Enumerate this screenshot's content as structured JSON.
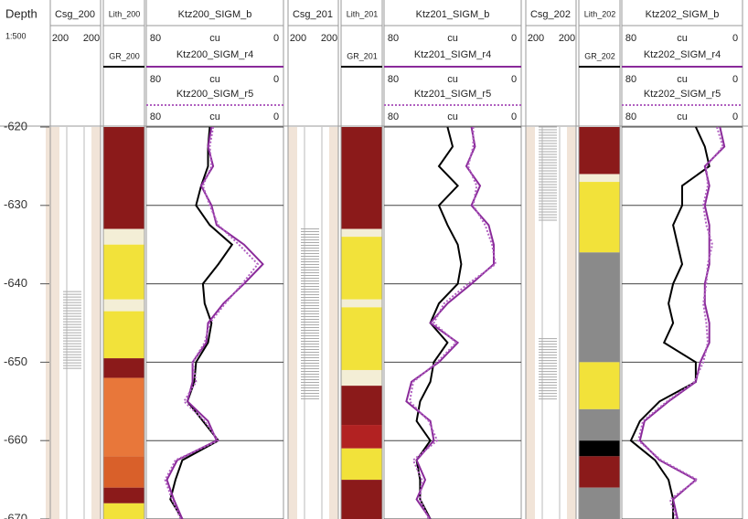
{
  "chart_data": {
    "type": "well_log",
    "depth_label": "Depth",
    "scale": "1:500",
    "ylim": [
      -620,
      -670
    ],
    "yticks": [
      -620,
      -630,
      -640,
      -650,
      -660,
      -670
    ],
    "depth_samples": [
      -620,
      -622.5,
      -625,
      -627.5,
      -630,
      -632.5,
      -635,
      -637.5,
      -640,
      -642.5,
      -645,
      -647.5,
      -650,
      -652.5,
      -655,
      -657.5,
      -660,
      -662.5,
      -665,
      -667.5,
      -670
    ],
    "wells": [
      {
        "casing": {
          "name": "Csg_200",
          "scale": [
            200,
            200
          ],
          "marks": [
            [
              -641,
              -651
            ]
          ]
        },
        "lith": "Lith_200",
        "gr": "GR_200",
        "lithology": [
          {
            "top": -620,
            "base": -633,
            "color": "#8b1a1a"
          },
          {
            "top": -633,
            "base": -635,
            "color": "#f3eed6"
          },
          {
            "top": -635,
            "base": -642,
            "color": "#f2e23a"
          },
          {
            "top": -642,
            "base": -643.5,
            "color": "#f3eed6"
          },
          {
            "top": -643.5,
            "base": -649.5,
            "color": "#f2e23a"
          },
          {
            "top": -649.5,
            "base": -652,
            "color": "#8b1a1a"
          },
          {
            "top": -652,
            "base": -662,
            "color": "#e8773a"
          },
          {
            "top": -662,
            "base": -666,
            "color": "#d9602a"
          },
          {
            "top": -666,
            "base": -668,
            "color": "#8b1a1a"
          },
          {
            "top": -668,
            "base": -670,
            "color": "#f2e23a"
          }
        ],
        "tracks": [
          {
            "name": "Ktz200_SIGM_b",
            "color": "#000000",
            "style": "solid",
            "scale": [
              80,
              "cu",
              0
            ],
            "values": [
              43,
              44,
              44,
              48,
              51,
              43,
              30,
              38,
              47,
              46,
              42,
              44,
              51,
              52,
              56,
              47,
              38,
              59,
              63,
              66,
              59
            ]
          },
          {
            "name": "Ktz200_SIGM_r4",
            "color": "#8a2a9a",
            "style": "solid",
            "scale": [
              80,
              "cu",
              0
            ],
            "values": [
              42,
              44,
              41,
              48,
              42,
              39,
              23,
              12,
              23,
              35,
              44,
              45,
              53,
              53,
              56,
              44,
              39,
              62,
              68,
              64,
              59
            ]
          },
          {
            "name": "Ktz200_SIGM_r5",
            "color": "#b060c0",
            "style": "dotted",
            "scale": [
              80,
              "cu",
              0
            ],
            "values": [
              41,
              43,
              42,
              47,
              43,
              38,
              26,
              15,
              24,
              34,
              43,
              46,
              53,
              51,
              58,
              46,
              38,
              63,
              69,
              65,
              60
            ]
          }
        ]
      },
      {
        "casing": {
          "name": "Csg_201",
          "scale": [
            200,
            200
          ],
          "marks": [
            [
              -633,
              -655
            ]
          ]
        },
        "lith": "Lith_201",
        "gr": "GR_201",
        "lithology": [
          {
            "top": -620,
            "base": -633,
            "color": "#8b1a1a"
          },
          {
            "top": -633,
            "base": -634,
            "color": "#f3eed6"
          },
          {
            "top": -634,
            "base": -642,
            "color": "#f2e23a"
          },
          {
            "top": -642,
            "base": -643,
            "color": "#f3eed6"
          },
          {
            "top": -643,
            "base": -651,
            "color": "#f2e23a"
          },
          {
            "top": -651,
            "base": -653,
            "color": "#f3eed6"
          },
          {
            "top": -653,
            "base": -658,
            "color": "#8b1a1a"
          },
          {
            "top": -658,
            "base": -661,
            "color": "#b22222"
          },
          {
            "top": -661,
            "base": -665,
            "color": "#f2e23a"
          },
          {
            "top": -665,
            "base": -670,
            "color": "#8b1a1a"
          }
        ],
        "tracks": [
          {
            "name": "Ktz201_SIGM_b",
            "color": "#000000",
            "style": "solid",
            "scale": [
              80,
              "cu",
              0
            ],
            "values": [
              43,
              40,
              48,
              37,
              48,
              43,
              37,
              35,
              37,
              48,
              53,
              43,
              51,
              53,
              59,
              61,
              53,
              61,
              59,
              59,
              53
            ]
          },
          {
            "name": "Ktz201_SIGM_r4",
            "color": "#8a2a9a",
            "style": "solid",
            "scale": [
              80,
              "cu",
              0
            ],
            "values": [
              29,
              27,
              32,
              24,
              29,
              19,
              16,
              16,
              29,
              43,
              53,
              37,
              48,
              64,
              67,
              53,
              51,
              61,
              56,
              61,
              53
            ]
          },
          {
            "name": "Ktz201_SIGM_r5",
            "color": "#b060c0",
            "style": "dotted",
            "scale": [
              80,
              "cu",
              0
            ],
            "values": [
              28,
              28,
              31,
              26,
              28,
              21,
              17,
              15,
              31,
              45,
              51,
              38,
              49,
              63,
              65,
              54,
              49,
              63,
              58,
              59,
              54
            ]
          }
        ]
      },
      {
        "casing": {
          "name": "Csg_202",
          "scale": [
            200,
            200
          ],
          "marks": [
            [
              -620,
              -632
            ],
            [
              -647,
              -655
            ]
          ]
        },
        "lith": "Lith_202",
        "gr": "GR_202",
        "lithology": [
          {
            "top": -620,
            "base": -626,
            "color": "#8b1a1a"
          },
          {
            "top": -626,
            "base": -627,
            "color": "#f3eed6"
          },
          {
            "top": -627,
            "base": -636,
            "color": "#f2e23a"
          },
          {
            "top": -636,
            "base": -650,
            "color": "#8a8a8a"
          },
          {
            "top": -650,
            "base": -656,
            "color": "#f2e23a"
          },
          {
            "top": -656,
            "base": -660,
            "color": "#8a8a8a"
          },
          {
            "top": -660,
            "base": -662,
            "color": "#000000"
          },
          {
            "top": -662,
            "base": -666,
            "color": "#8b1a1a"
          },
          {
            "top": -666,
            "base": -670,
            "color": "#8a8a8a"
          }
        ],
        "tracks": [
          {
            "name": "Ktz202_SIGM_b",
            "color": "#000000",
            "style": "solid",
            "scale": [
              80,
              "cu",
              0
            ],
            "values": [
              31,
              25,
              22,
              40,
              40,
              46,
              43,
              40,
              46,
              49,
              46,
              52,
              31,
              31,
              55,
              68,
              74,
              58,
              49,
              46,
              46
            ]
          },
          {
            "name": "Ktz202_SIGM_r4",
            "color": "#8a2a9a",
            "style": "solid",
            "scale": [
              80,
              "cu",
              0
            ],
            "values": [
              15,
              12,
              25,
              22,
              25,
              22,
              22,
              22,
              25,
              25,
              22,
              22,
              28,
              31,
              49,
              65,
              68,
              55,
              31,
              46,
              43
            ]
          },
          {
            "name": "Ktz202_SIGM_r5",
            "color": "#b060c0",
            "style": "dotted",
            "scale": [
              80,
              "cu",
              0
            ],
            "values": [
              17,
              13,
              24,
              23,
              26,
              24,
              20,
              23,
              24,
              26,
              24,
              23,
              26,
              32,
              50,
              66,
              69,
              54,
              30,
              48,
              44
            ]
          }
        ]
      }
    ]
  }
}
